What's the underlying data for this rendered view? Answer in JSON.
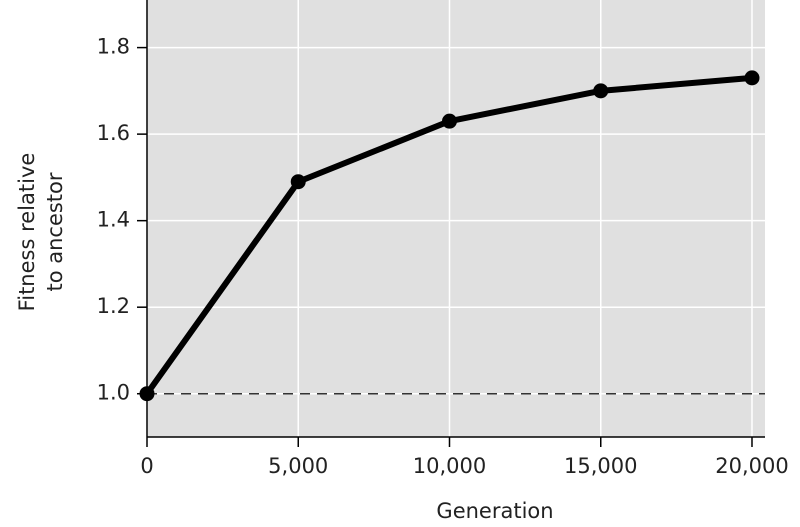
{
  "chart_data": {
    "type": "line",
    "x_label": "Generation",
    "y_label": [
      "Fitness relative",
      "to ancestor"
    ],
    "x": [
      0,
      5000,
      10000,
      15000,
      20000
    ],
    "series": [
      {
        "color": "#000000",
        "values": [
          1.0,
          1.49,
          1.63,
          1.7,
          1.73
        ]
      }
    ],
    "xlim": [
      0,
      20430
    ],
    "ylim": [
      0.9,
      1.91
    ],
    "xticks": [
      0,
      {
        "value": 5000,
        "label": "5,000"
      },
      {
        "value": 10000,
        "label": "10,000"
      },
      {
        "value": 15000,
        "label": "15,000"
      },
      {
        "value": 20000,
        "label": "20,000"
      }
    ],
    "yticks": [
      {
        "value": 1,
        "label": "1.0"
      },
      1.2,
      1.4,
      1.6,
      1.8
    ],
    "reference_y": 1,
    "grid": true,
    "background": "#e0e0e0"
  }
}
